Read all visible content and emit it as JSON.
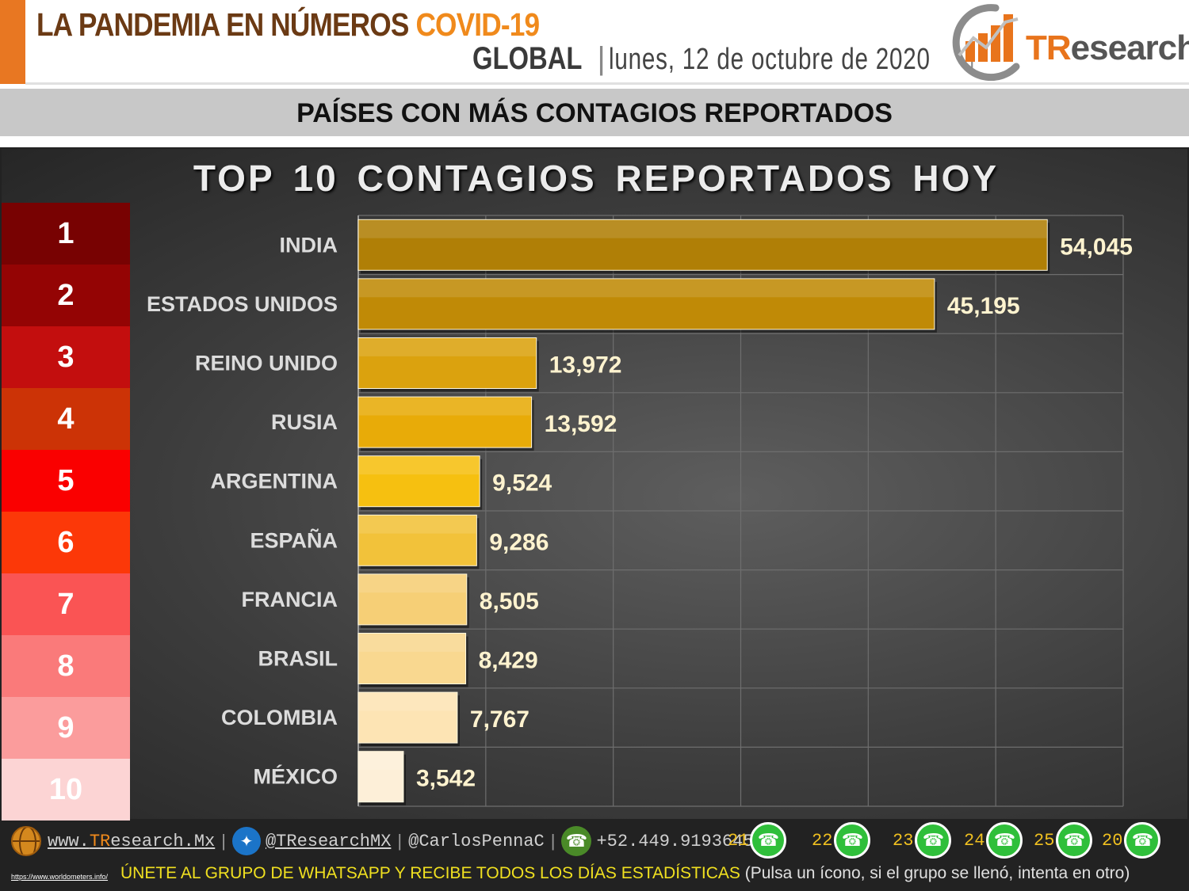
{
  "header": {
    "title": "LA PANDEMIA EN NÚMEROS",
    "title_accent": "COVID-19",
    "scope": "GLOBAL",
    "date": "lunes, 12 de octubre de 2020",
    "brand": {
      "t": "TR",
      "rest": "esearch"
    }
  },
  "band_title": "PAÍSES CON MÁS CONTAGIOS REPORTADOS",
  "chart_data": {
    "type": "bar",
    "orientation": "horizontal",
    "title": "TOP 10 CONTAGIOS REPORTADOS HOY",
    "categories": [
      "INDIA",
      "ESTADOS UNIDOS",
      "REINO UNIDO",
      "RUSIA",
      "ARGENTINA",
      "ESPAÑA",
      "FRANCIA",
      "BRASIL",
      "COLOMBIA",
      "MÉXICO"
    ],
    "values": [
      54045,
      45195,
      13972,
      13592,
      9524,
      9286,
      8505,
      8429,
      7767,
      3542
    ],
    "value_labels": [
      "54,045",
      "45,195",
      "13,972",
      "13,592",
      "9,524",
      "9,286",
      "8,505",
      "8,429",
      "7,767",
      "3,542"
    ],
    "ranks": [
      "1",
      "2",
      "3",
      "4",
      "5",
      "6",
      "7",
      "8",
      "9",
      "10"
    ],
    "xlim": [
      0,
      60000
    ],
    "grid": true,
    "bar_colors": [
      "#b07f06",
      "#c08a06",
      "#dba20e",
      "#e8ab08",
      "#f6c010",
      "#f2c23a",
      "#f6cf76",
      "#f9d890",
      "#fde4b4",
      "#fdefd8"
    ],
    "rank_colors": [
      "#780202",
      "#940404",
      "#c30e0e",
      "#cc3306",
      "#fa0000",
      "#fc3808",
      "#fa5454",
      "#fa7a7a",
      "#fb9c9c",
      "#fcd4d4"
    ]
  },
  "footer": {
    "website_prefix": "www.",
    "website_accent": "TR",
    "website_rest": "esearch.Mx",
    "twitter": "@TResearchMX",
    "personal": "@CarlosPennaC",
    "phone": "+52.449.9193645",
    "whatsapp_groups": [
      "21",
      "22",
      "23",
      "24",
      "25",
      "20"
    ],
    "source": "https://www.worldometers.info/",
    "cta": "ÚNETE AL GRUPO DE WHATSAPP Y RECIBE TODOS LOS DÍAS ESTADÍSTICAS",
    "cta_sub": "(Pulsa un ícono, si el grupo se llenó, intenta en otro)"
  }
}
